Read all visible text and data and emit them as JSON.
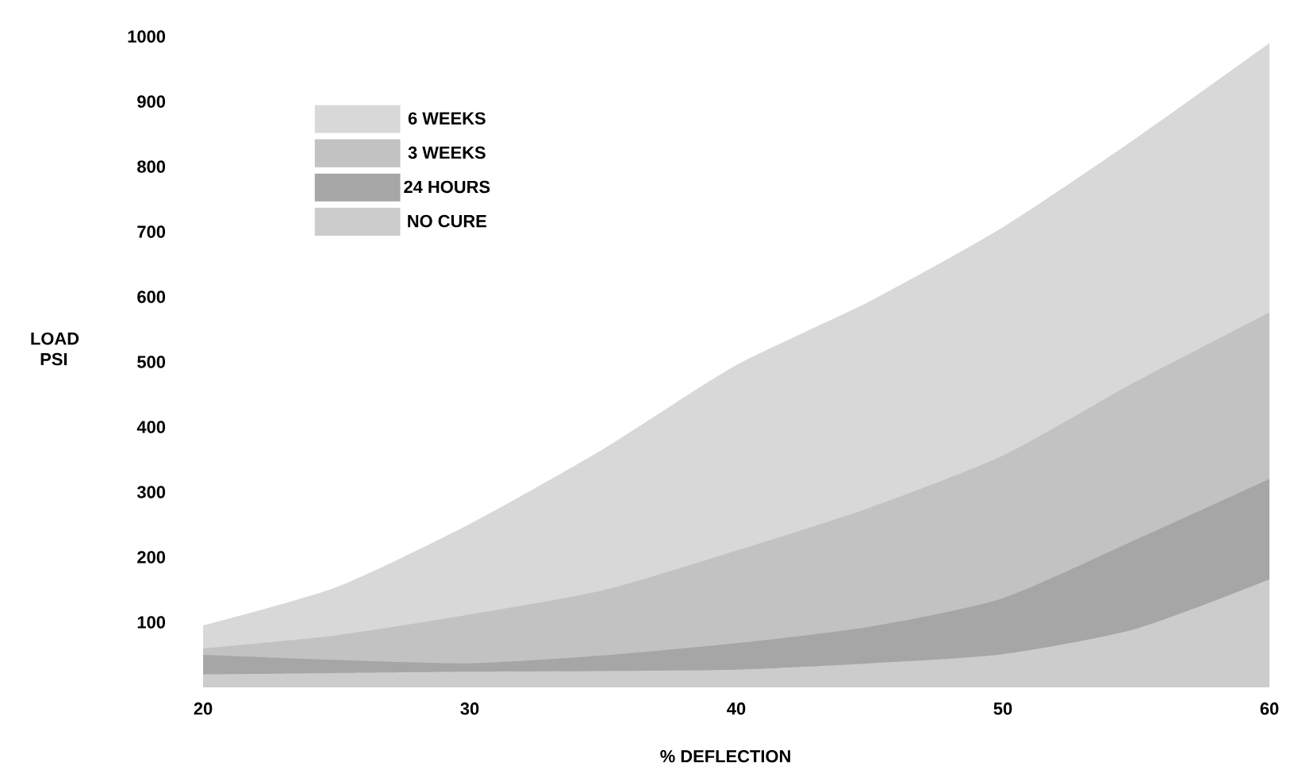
{
  "chart_data": {
    "type": "area",
    "xlabel": "% DEFLECTION",
    "ylabel": "LOAD PSI",
    "x": [
      20,
      25,
      30,
      35,
      40,
      45,
      50,
      55,
      60
    ],
    "series": [
      {
        "name": "6 WEEKS",
        "color": "#d8d8d8",
        "values": [
          95,
          154,
          251,
          366,
          495,
          593,
          707,
          844,
          990
        ]
      },
      {
        "name": "3 WEEKS",
        "color": "#c2c2c2",
        "values": [
          60,
          80,
          112,
          149,
          210,
          276,
          356,
          470,
          576
        ]
      },
      {
        "name": "24 HOURS",
        "color": "#a6a6a6",
        "values": [
          50,
          42,
          37,
          49,
          68,
          93,
          137,
          227,
          320
        ]
      },
      {
        "name": "NO CURE",
        "color": "#cccccc",
        "values": [
          20,
          22,
          24,
          25,
          27,
          37,
          51,
          90,
          166
        ]
      }
    ],
    "xlim": [
      20,
      60
    ],
    "xticks": [
      20,
      30,
      40,
      50,
      60
    ],
    "ylim": [
      0,
      1000
    ],
    "yticks": [
      100,
      200,
      300,
      400,
      500,
      600,
      700,
      800,
      900,
      1000
    ],
    "legend": "top left",
    "grid": false
  }
}
